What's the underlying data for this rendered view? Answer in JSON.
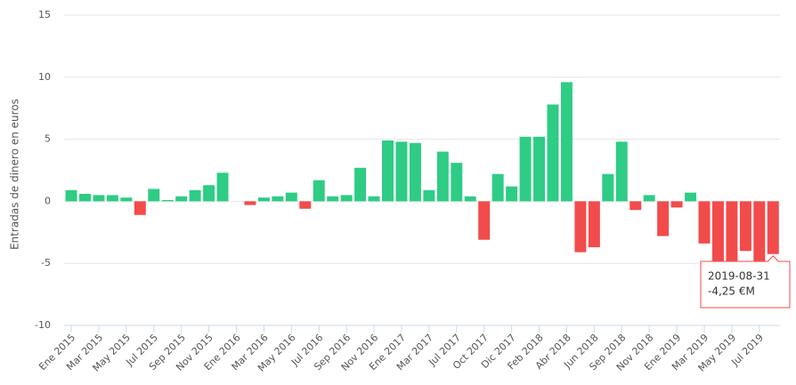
{
  "chart_data": {
    "type": "bar",
    "y_label": "Entradas de dinero en euros",
    "categories": [
      "Ene 2015",
      null,
      "Mar 2015",
      null,
      "May 2015",
      null,
      "Jul 2015",
      null,
      "Sep 2015",
      null,
      "Nov 2015",
      null,
      "Ene 2016",
      null,
      "Mar 2016",
      null,
      "May 2016",
      null,
      "Jul 2016",
      null,
      "Sep 2016",
      null,
      "Nov 2016",
      null,
      "Ene 2017",
      null,
      "Mar 2017",
      null,
      "Jul 2017",
      null,
      "Oct 2017",
      null,
      "Dic 2017",
      null,
      "Feb 2018",
      null,
      "Abr 2018",
      null,
      "Jun 2018",
      null,
      "Sep 2018",
      null,
      "Nov 2018",
      null,
      "Ene 2019",
      null,
      "Mar 2019",
      null,
      "May 2019",
      null,
      "Jul 2019",
      null
    ],
    "values": [
      0.9,
      0.6,
      0.5,
      0.5,
      0.3,
      -1.1,
      1.0,
      0.1,
      0.4,
      0.9,
      1.3,
      2.3,
      0,
      -0.3,
      0.3,
      0.4,
      0.7,
      -0.6,
      1.7,
      0.4,
      0.5,
      2.7,
      0.4,
      4.9,
      4.8,
      4.7,
      0.9,
      4.0,
      3.1,
      0.4,
      -3.1,
      2.2,
      1.2,
      5.2,
      5.2,
      7.8,
      9.6,
      -4.1,
      -3.7,
      2.2,
      4.8,
      -0.7,
      0.5,
      -2.8,
      -0.5,
      0.7,
      -3.4,
      -5.0,
      -5.3,
      -4.0,
      -5.2,
      -4.25
    ],
    "positive_color": "#2ecc85",
    "negative_color": "#f24b4b",
    "ylim": [
      -10,
      15
    ],
    "yticks": [
      -10,
      -5,
      0,
      5,
      10,
      15
    ],
    "grid": true,
    "tooltip": {
      "date": "2019-08-31",
      "label": "-4,25 €M",
      "index": 51
    }
  }
}
